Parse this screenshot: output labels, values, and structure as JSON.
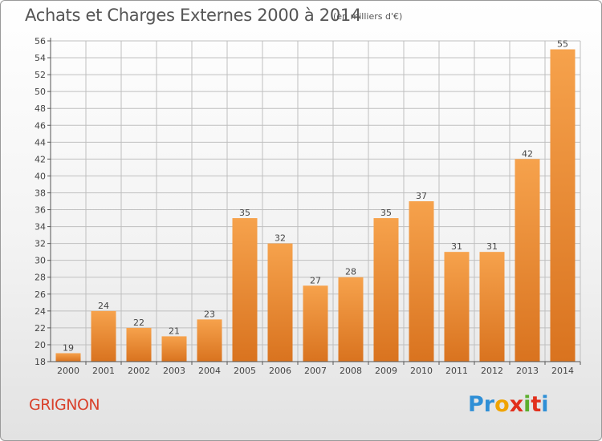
{
  "header": {
    "title": "Achats et Charges Externes 2000 à 2014",
    "subtitle": "(en milliers d'€)"
  },
  "footer": {
    "commune": "GRIGNON",
    "brand_letters": [
      "P",
      "r",
      "o",
      "x",
      "i",
      "t",
      "i"
    ],
    "brand_colors": [
      "#2f8fd6",
      "#2f8fd6",
      "#f0a400",
      "#e1301d",
      "#5cae2e",
      "#e1301d",
      "#2f8fd6"
    ]
  },
  "colors": {
    "bar_light": "#f6a24c",
    "bar_dark": "#d9731f",
    "axis": "#555555",
    "grid": "#bfbfbf",
    "text": "#444444"
  },
  "chart_data": {
    "type": "bar",
    "categories": [
      "2000",
      "2001",
      "2002",
      "2003",
      "2004",
      "2005",
      "2006",
      "2007",
      "2008",
      "2009",
      "2010",
      "2011",
      "2012",
      "2013",
      "2014"
    ],
    "values": [
      19,
      24,
      22,
      21,
      23,
      35,
      32,
      27,
      28,
      35,
      37,
      31,
      31,
      42,
      55
    ],
    "ylim": [
      18,
      56
    ],
    "yticks": [
      18,
      20,
      22,
      24,
      26,
      28,
      30,
      32,
      34,
      36,
      38,
      40,
      42,
      44,
      46,
      48,
      50,
      52,
      54,
      56
    ],
    "grid": "horizontal",
    "data_labels": true
  }
}
